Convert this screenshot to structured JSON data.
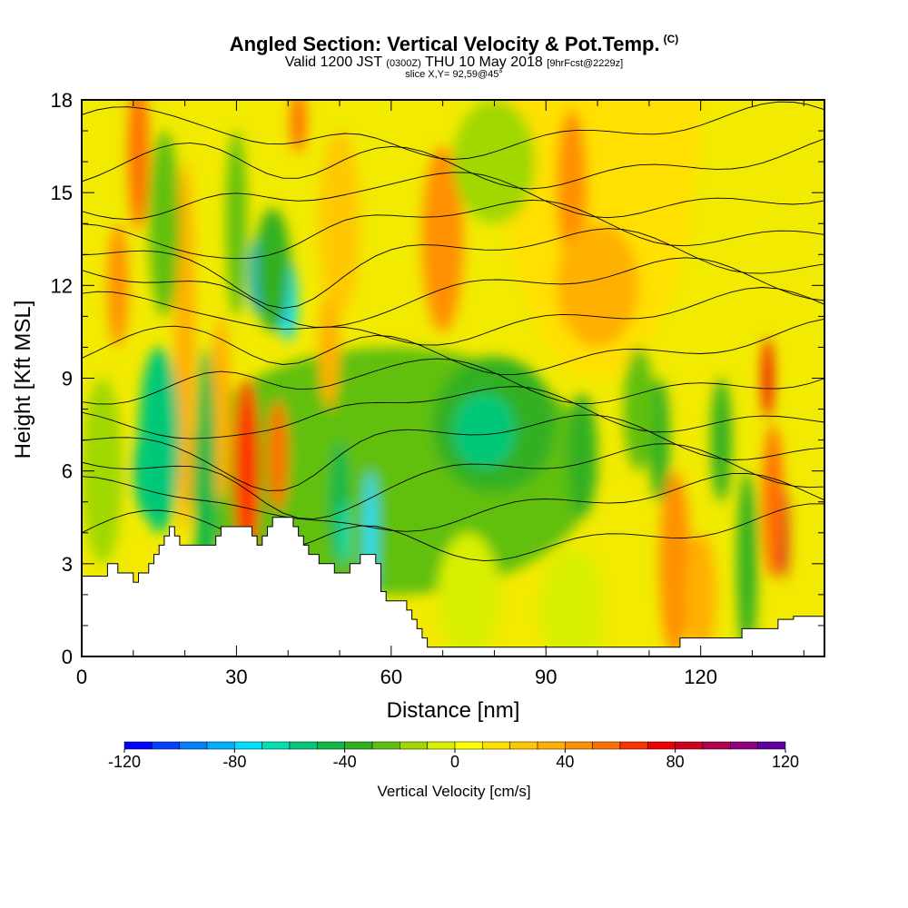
{
  "header": {
    "title": "Angled Section: Vertical Velocity & Pot.Temp.",
    "title_suffix": "(C)",
    "valid_main": "Valid 1200 JST",
    "valid_utc": "(0300Z)",
    "valid_date": "THU 10 May 2018",
    "forecast": "[9hrFcst@2229z]",
    "slice": "slice X,Y= 92,59@45°"
  },
  "chart_data": {
    "type": "heatmap",
    "xlabel": "Distance [nm]",
    "ylabel": "Height [Kft MSL]",
    "xlim": [
      0,
      144
    ],
    "ylim": [
      0,
      18
    ],
    "xticks": [
      "0",
      "30",
      "60",
      "90",
      "120"
    ],
    "xtick_values": [
      0,
      30,
      60,
      90,
      120
    ],
    "yticks": [
      "0",
      "3",
      "6",
      "9",
      "12",
      "15",
      "18"
    ],
    "ytick_values": [
      0,
      3,
      6,
      9,
      12,
      15,
      18
    ],
    "colorbar": {
      "title": "Vertical Velocity [cm/s]",
      "range": [
        -120,
        120
      ],
      "step": 10,
      "labels": [
        "-120",
        "-80",
        "-40",
        "0",
        "40",
        "80",
        "120"
      ],
      "label_values": [
        -120,
        -80,
        -40,
        0,
        40,
        80,
        120
      ],
      "colors": [
        "#0000ff",
        "#0040ff",
        "#0080ff",
        "#00b0ff",
        "#00e0ff",
        "#00e0b0",
        "#00c878",
        "#10b848",
        "#30b020",
        "#60c010",
        "#a0d800",
        "#d8ef00",
        "#ffff00",
        "#ffe000",
        "#ffc800",
        "#ffb000",
        "#ff9000",
        "#ff7000",
        "#ff3000",
        "#ee0000",
        "#d00020",
        "#b00050",
        "#900080",
        "#6000a0"
      ]
    },
    "terrain_profile": {
      "x": [
        0,
        4,
        5,
        6,
        7,
        8,
        9,
        10,
        11,
        12,
        13,
        14,
        15,
        16,
        17,
        18,
        19,
        20,
        21,
        25,
        26,
        27,
        28,
        29,
        30,
        31,
        32,
        33,
        34,
        35,
        36,
        37,
        38,
        39,
        40,
        41,
        42,
        43,
        44,
        45,
        46,
        47,
        48,
        49,
        50,
        51,
        52,
        53,
        54,
        55,
        56,
        57,
        58,
        59,
        60,
        61,
        62,
        63,
        64,
        65,
        66,
        67,
        68,
        69,
        70,
        80,
        90,
        100,
        110,
        114,
        116,
        120,
        125,
        128,
        130,
        132,
        134,
        135,
        136,
        137,
        138,
        144
      ],
      "height": [
        2.6,
        2.6,
        3.0,
        3.0,
        2.7,
        2.7,
        2.7,
        2.4,
        2.7,
        2.7,
        3.0,
        3.3,
        3.6,
        3.9,
        4.2,
        3.9,
        3.6,
        3.6,
        3.6,
        3.6,
        3.9,
        4.2,
        4.2,
        4.2,
        4.2,
        4.2,
        4.2,
        3.9,
        3.6,
        3.9,
        4.2,
        4.5,
        4.5,
        4.5,
        4.5,
        4.2,
        3.9,
        3.6,
        3.3,
        3.3,
        3.0,
        3.0,
        3.0,
        2.7,
        2.7,
        2.7,
        3.0,
        3.0,
        3.3,
        3.3,
        3.3,
        3.0,
        2.1,
        1.8,
        1.8,
        1.8,
        1.8,
        1.5,
        1.2,
        0.9,
        0.6,
        0.3,
        0.3,
        0.3,
        0.3,
        0.3,
        0.3,
        0.3,
        0.3,
        0.3,
        0.6,
        0.6,
        0.6,
        0.9,
        0.9,
        0.9,
        0.9,
        1.2,
        1.2,
        1.2,
        1.3,
        1.3
      ]
    }
  }
}
